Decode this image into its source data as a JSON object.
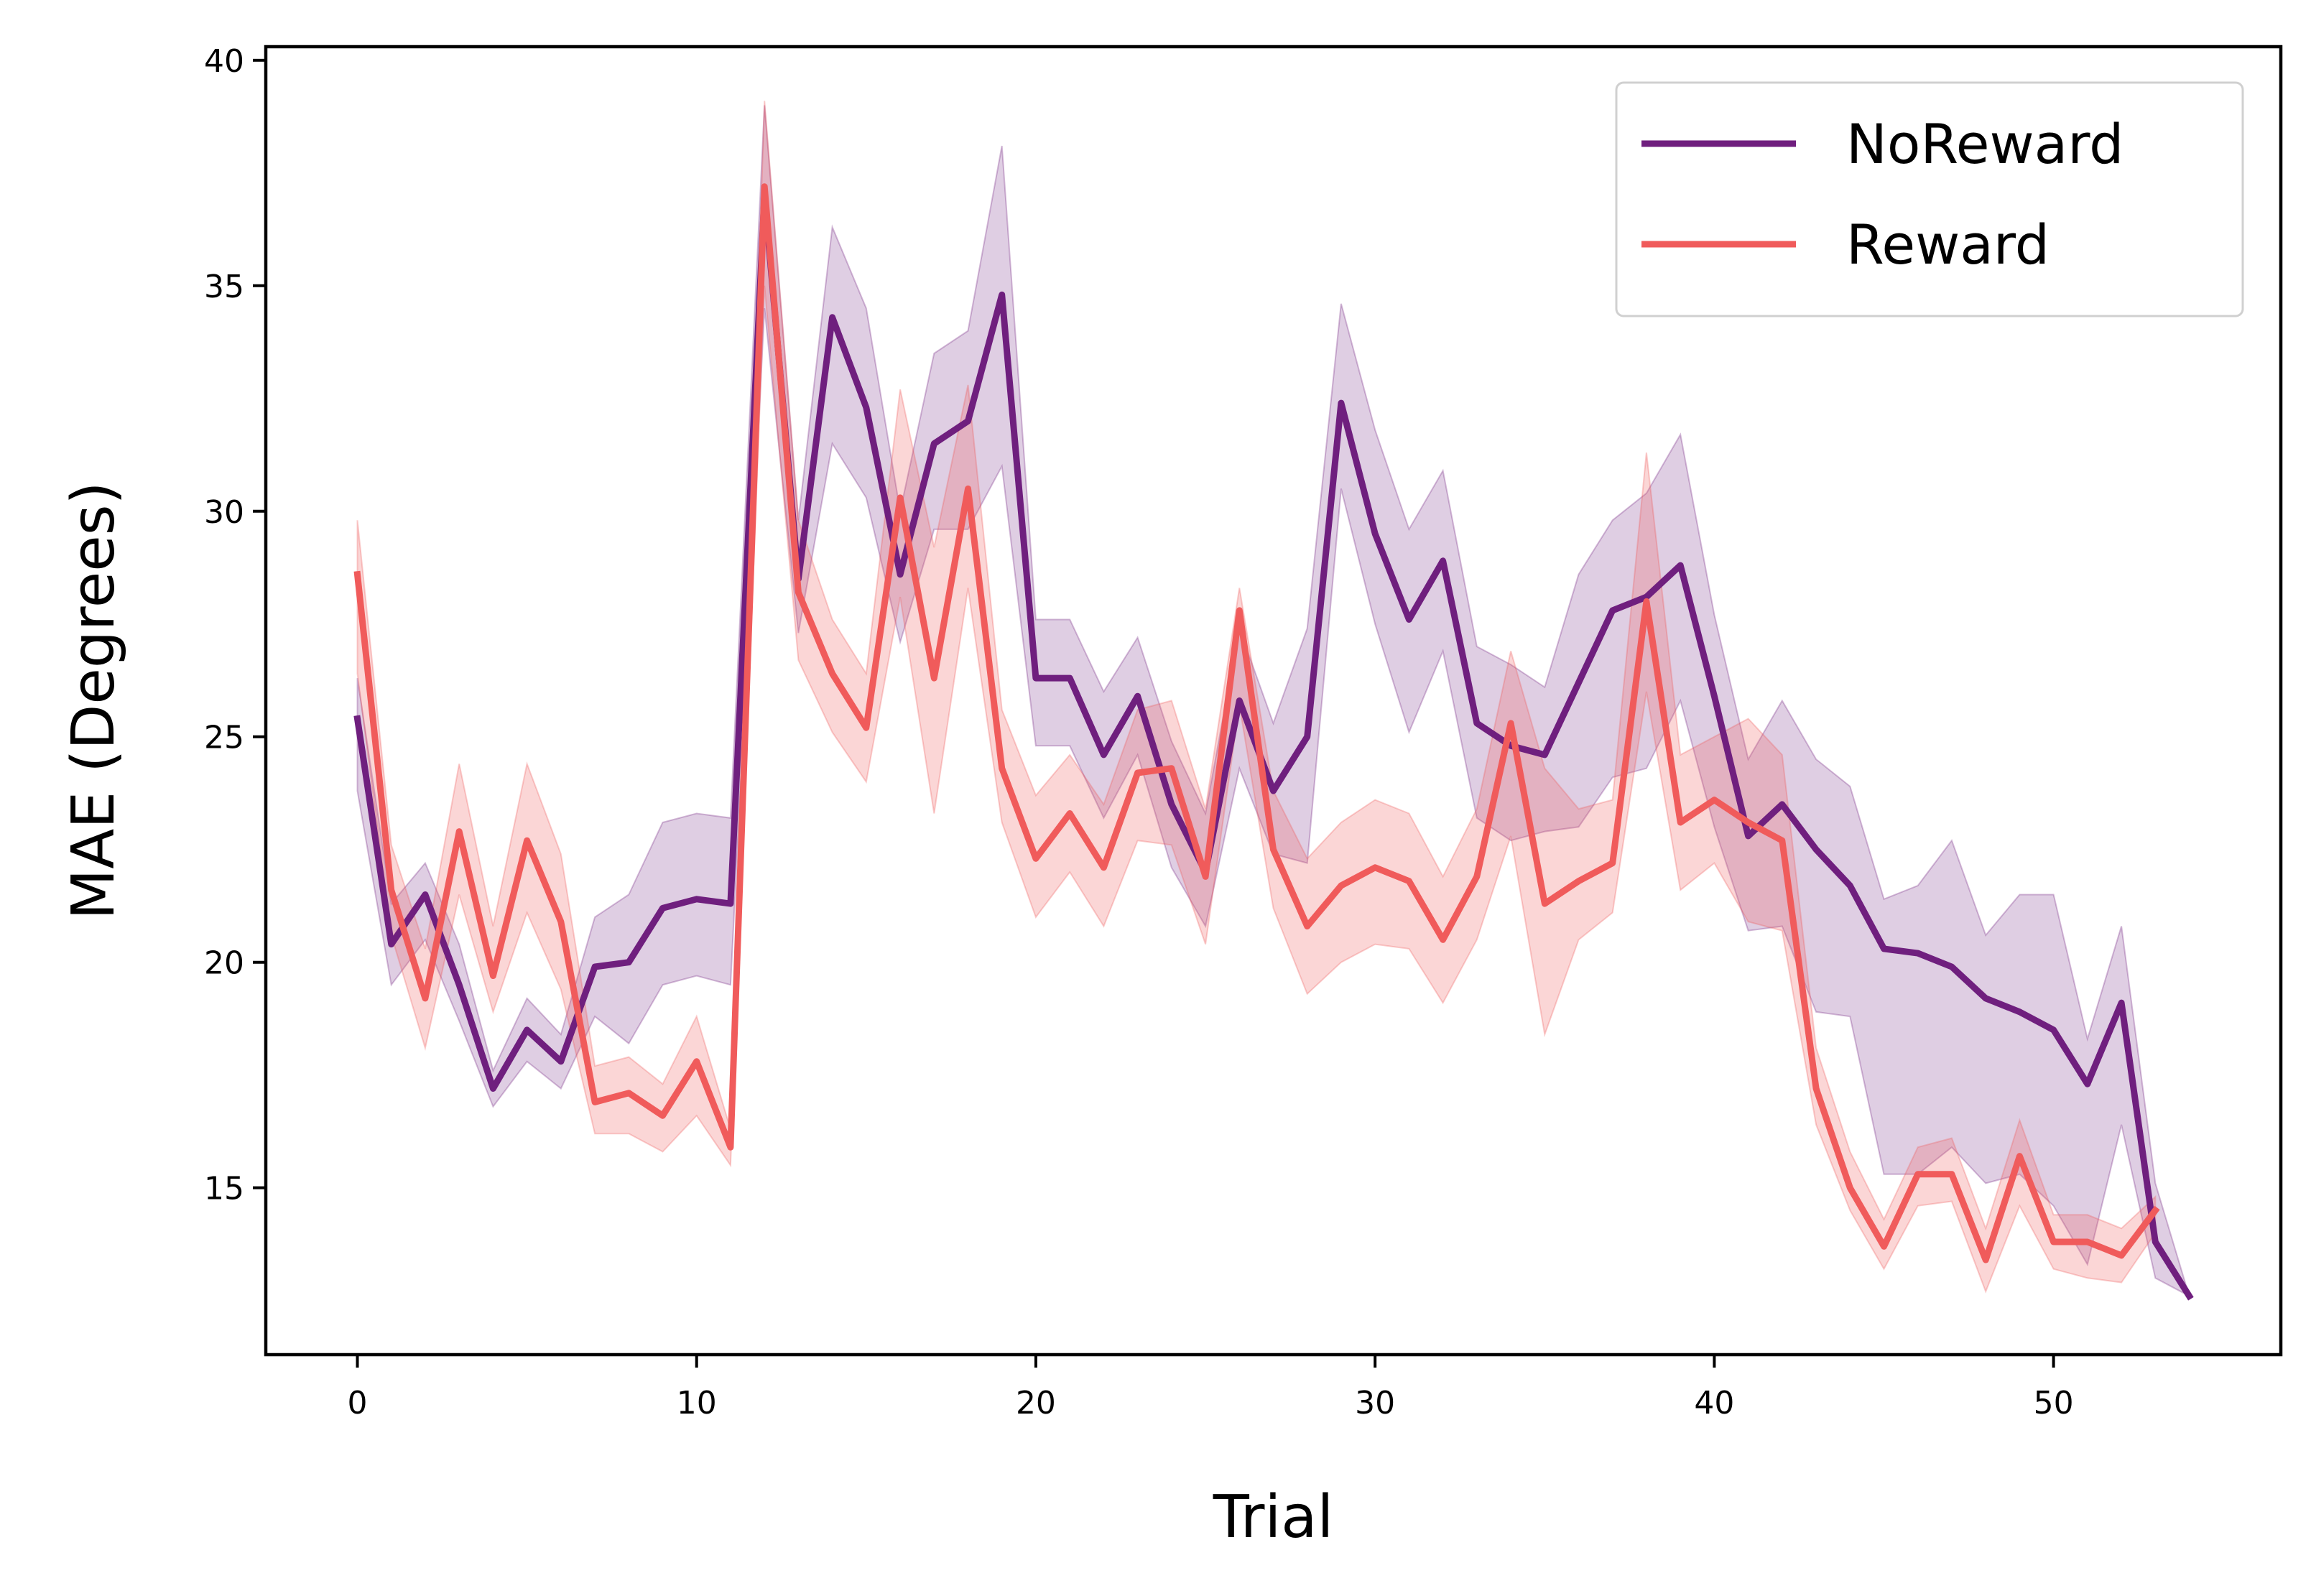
{
  "chart_data": {
    "type": "line",
    "xlabel": "Trial",
    "ylabel": "MAE (Degrees)",
    "xlim": [
      -2.7,
      56.7
    ],
    "ylim": [
      11.3,
      40.3
    ],
    "xticks": [
      0,
      10,
      20,
      30,
      40,
      50
    ],
    "yticks": [
      15,
      20,
      25,
      30,
      35,
      40
    ],
    "grid": false,
    "legend_position": "top-right",
    "series": [
      {
        "name": "NoReward",
        "color": "#6f1f7e",
        "x": [
          0,
          1,
          2,
          3,
          4,
          5,
          6,
          7,
          8,
          9,
          10,
          11,
          12,
          13,
          14,
          15,
          16,
          17,
          18,
          19,
          20,
          21,
          22,
          23,
          24,
          25,
          26,
          27,
          28,
          29,
          30,
          31,
          32,
          33,
          34,
          35,
          36,
          37,
          38,
          39,
          40,
          41,
          42,
          43,
          44,
          45,
          46,
          47,
          48,
          49,
          50,
          51,
          52,
          53,
          54
        ],
        "values": [
          25.4,
          20.4,
          21.5,
          19.5,
          17.2,
          18.5,
          17.8,
          19.9,
          20.0,
          21.2,
          21.4,
          21.3,
          37.0,
          28.5,
          34.3,
          32.3,
          28.6,
          31.5,
          32.0,
          34.8,
          26.3,
          26.3,
          24.6,
          25.9,
          23.5,
          22.0,
          25.8,
          23.8,
          25.0,
          32.4,
          29.5,
          27.6,
          28.9,
          25.3,
          24.8,
          24.6,
          26.2,
          27.8,
          28.1,
          28.8,
          25.9,
          22.8,
          23.5,
          22.5,
          21.7,
          20.3,
          20.2,
          19.9,
          19.2,
          18.9,
          18.5,
          17.3,
          19.1,
          13.8,
          12.6
        ],
        "lower": [
          23.8,
          19.5,
          20.5,
          18.7,
          16.8,
          17.8,
          17.2,
          18.8,
          18.2,
          19.5,
          19.7,
          19.5,
          34.5,
          27.3,
          31.5,
          30.3,
          27.1,
          29.6,
          29.6,
          31.0,
          24.8,
          24.8,
          23.2,
          24.6,
          22.1,
          20.8,
          24.3,
          22.4,
          22.2,
          30.5,
          27.5,
          25.1,
          26.9,
          23.2,
          22.7,
          22.9,
          23.0,
          24.1,
          24.3,
          25.8,
          23.0,
          20.7,
          20.8,
          18.9,
          18.8,
          15.3,
          15.3,
          15.9,
          15.1,
          15.3,
          14.6,
          13.3,
          16.4,
          13.0,
          12.6
        ],
        "upper": [
          26.3,
          21.3,
          22.2,
          20.4,
          17.6,
          19.2,
          18.4,
          21.0,
          21.5,
          23.1,
          23.3,
          23.2,
          39.0,
          29.8,
          36.3,
          34.5,
          30.0,
          33.5,
          34.0,
          38.1,
          27.6,
          27.6,
          26.0,
          27.2,
          24.9,
          23.3,
          27.4,
          25.3,
          27.4,
          34.6,
          31.8,
          29.6,
          30.9,
          27.0,
          26.6,
          26.1,
          28.6,
          29.8,
          30.4,
          31.7,
          27.7,
          24.5,
          25.8,
          24.5,
          23.9,
          21.4,
          21.7,
          22.7,
          20.6,
          21.5,
          21.5,
          18.3,
          20.8,
          15.1,
          12.6
        ]
      },
      {
        "name": "Reward",
        "color": "#f05b5b",
        "x": [
          0,
          1,
          2,
          3,
          4,
          5,
          6,
          7,
          8,
          9,
          10,
          11,
          12,
          13,
          14,
          15,
          16,
          17,
          18,
          19,
          20,
          21,
          22,
          23,
          24,
          25,
          26,
          27,
          28,
          29,
          30,
          31,
          32,
          33,
          34,
          35,
          36,
          37,
          38,
          39,
          40,
          41,
          42,
          43,
          44,
          45,
          46,
          47,
          48,
          49,
          50,
          51,
          52,
          53
        ],
        "values": [
          28.6,
          21.6,
          19.2,
          22.9,
          19.7,
          22.7,
          20.9,
          16.9,
          17.1,
          16.6,
          17.8,
          15.9,
          37.2,
          28.2,
          26.4,
          25.2,
          30.3,
          26.3,
          30.5,
          24.3,
          22.3,
          23.3,
          22.1,
          24.2,
          24.3,
          21.9,
          27.8,
          22.5,
          20.8,
          21.7,
          22.1,
          21.8,
          20.5,
          21.9,
          25.3,
          21.3,
          21.8,
          22.2,
          28.0,
          23.1,
          23.6,
          23.1,
          22.7,
          17.2,
          15.0,
          13.7,
          15.3,
          15.3,
          13.4,
          15.7,
          13.8,
          13.8,
          13.5,
          14.5
        ],
        "lower": [
          26.4,
          20.6,
          18.1,
          21.5,
          18.9,
          21.1,
          19.4,
          16.2,
          16.2,
          15.8,
          16.6,
          15.5,
          35.0,
          26.7,
          25.1,
          24.0,
          28.1,
          23.3,
          28.3,
          23.1,
          21.0,
          22.0,
          20.8,
          22.7,
          22.6,
          20.4,
          25.7,
          21.2,
          19.3,
          20.0,
          20.4,
          20.3,
          19.1,
          20.5,
          22.8,
          18.4,
          20.5,
          21.1,
          26.0,
          21.6,
          22.2,
          20.9,
          20.7,
          16.4,
          14.5,
          13.2,
          14.6,
          14.7,
          12.7,
          14.6,
          13.2,
          13.0,
          12.9,
          14.0
        ],
        "upper": [
          29.8,
          22.6,
          20.3,
          24.4,
          20.8,
          24.4,
          22.4,
          17.7,
          17.9,
          17.3,
          18.8,
          16.3,
          39.1,
          29.8,
          27.6,
          26.4,
          32.7,
          29.2,
          32.8,
          25.6,
          23.7,
          24.6,
          23.5,
          25.6,
          25.8,
          23.4,
          28.3,
          23.8,
          22.3,
          23.1,
          23.6,
          23.3,
          21.9,
          23.4,
          26.9,
          24.3,
          23.4,
          23.6,
          31.3,
          24.6,
          25.0,
          25.4,
          24.6,
          18.1,
          15.8,
          14.3,
          15.9,
          16.1,
          14.1,
          16.5,
          14.4,
          14.4,
          14.1,
          14.8
        ]
      }
    ]
  }
}
